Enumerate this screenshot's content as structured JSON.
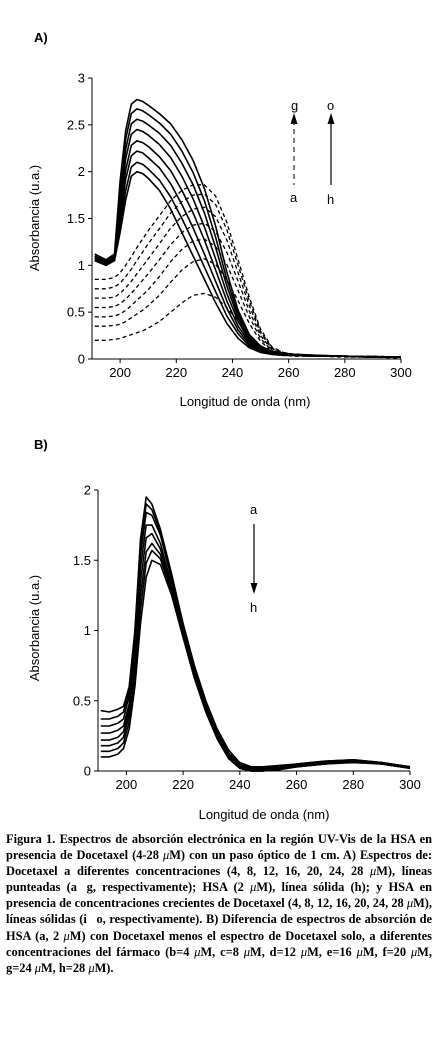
{
  "chart_data": [
    {
      "panel": "A)",
      "type": "line",
      "xlabel": "Longitud de onda (nm)",
      "ylabel": "Absorbancia (u.a.)",
      "xlim": [
        190,
        300
      ],
      "ylim": [
        0,
        3
      ],
      "xticks": [
        200,
        220,
        240,
        260,
        280,
        300
      ],
      "yticks": [
        0,
        0.5,
        1,
        1.5,
        2,
        2.5,
        3
      ],
      "ytick_labels": [
        "0",
        "0.5",
        "1",
        "1.5",
        "2",
        "2.5",
        "3"
      ],
      "annotations": {
        "dashed_top": "g",
        "dashed_bottom": "a",
        "solid_top": "o",
        "solid_bottom": "h"
      },
      "x": [
        191,
        195,
        198,
        200,
        202,
        204,
        206,
        208,
        210,
        214,
        218,
        222,
        226,
        230,
        234,
        238,
        242,
        246,
        250,
        254,
        258,
        262,
        270,
        280,
        290,
        300
      ],
      "series_dashed": [
        {
          "name": "a",
          "values": [
            0.2,
            0.2,
            0.21,
            0.22,
            0.24,
            0.26,
            0.28,
            0.3,
            0.33,
            0.4,
            0.5,
            0.6,
            0.68,
            0.7,
            0.66,
            0.55,
            0.4,
            0.25,
            0.13,
            0.06,
            0.04,
            0.03,
            0.03,
            0.02,
            0.02,
            0.01
          ]
        },
        {
          "name": "b",
          "values": [
            0.35,
            0.35,
            0.36,
            0.37,
            0.4,
            0.44,
            0.48,
            0.52,
            0.57,
            0.68,
            0.82,
            0.95,
            1.04,
            1.07,
            1.01,
            0.85,
            0.62,
            0.38,
            0.19,
            0.08,
            0.05,
            0.04,
            0.03,
            0.03,
            0.02,
            0.02
          ]
        },
        {
          "name": "c",
          "values": [
            0.45,
            0.45,
            0.46,
            0.48,
            0.52,
            0.57,
            0.63,
            0.68,
            0.74,
            0.88,
            1.04,
            1.17,
            1.26,
            1.28,
            1.2,
            1.01,
            0.73,
            0.45,
            0.22,
            0.09,
            0.05,
            0.04,
            0.03,
            0.03,
            0.02,
            0.02
          ]
        },
        {
          "name": "d",
          "values": [
            0.55,
            0.55,
            0.56,
            0.59,
            0.64,
            0.7,
            0.77,
            0.84,
            0.91,
            1.06,
            1.22,
            1.35,
            1.43,
            1.45,
            1.36,
            1.14,
            0.83,
            0.51,
            0.25,
            0.1,
            0.06,
            0.05,
            0.04,
            0.03,
            0.02,
            0.02
          ]
        },
        {
          "name": "e",
          "values": [
            0.65,
            0.65,
            0.66,
            0.7,
            0.76,
            0.83,
            0.91,
            0.99,
            1.07,
            1.23,
            1.4,
            1.52,
            1.6,
            1.62,
            1.52,
            1.27,
            0.92,
            0.57,
            0.28,
            0.11,
            0.06,
            0.05,
            0.04,
            0.03,
            0.03,
            0.02
          ]
        },
        {
          "name": "f",
          "values": [
            0.75,
            0.75,
            0.77,
            0.81,
            0.88,
            0.96,
            1.05,
            1.14,
            1.23,
            1.39,
            1.56,
            1.68,
            1.75,
            1.76,
            1.65,
            1.38,
            1.0,
            0.62,
            0.3,
            0.12,
            0.07,
            0.05,
            0.04,
            0.03,
            0.03,
            0.02
          ]
        },
        {
          "name": "g",
          "values": [
            0.85,
            0.85,
            0.87,
            0.92,
            1.0,
            1.09,
            1.19,
            1.28,
            1.37,
            1.53,
            1.69,
            1.8,
            1.86,
            1.86,
            1.74,
            1.46,
            1.06,
            0.66,
            0.32,
            0.13,
            0.07,
            0.05,
            0.04,
            0.03,
            0.03,
            0.02
          ]
        }
      ],
      "series_solid": [
        {
          "name": "h",
          "values": [
            1.05,
            1.0,
            1.05,
            1.35,
            1.7,
            1.95,
            2.0,
            1.98,
            1.93,
            1.8,
            1.6,
            1.35,
            1.1,
            0.85,
            0.6,
            0.38,
            0.22,
            0.12,
            0.07,
            0.05,
            0.04,
            0.04,
            0.03,
            0.03,
            0.02,
            0.02
          ]
        },
        {
          "name": "i",
          "values": [
            1.05,
            1.0,
            1.05,
            1.42,
            1.8,
            2.05,
            2.1,
            2.08,
            2.03,
            1.91,
            1.73,
            1.5,
            1.25,
            0.98,
            0.72,
            0.46,
            0.27,
            0.14,
            0.08,
            0.05,
            0.04,
            0.04,
            0.03,
            0.03,
            0.02,
            0.02
          ]
        },
        {
          "name": "j",
          "values": [
            1.06,
            1.01,
            1.06,
            1.5,
            1.92,
            2.17,
            2.22,
            2.2,
            2.15,
            2.04,
            1.87,
            1.65,
            1.4,
            1.12,
            0.83,
            0.54,
            0.31,
            0.16,
            0.09,
            0.06,
            0.05,
            0.04,
            0.03,
            0.03,
            0.02,
            0.02
          ]
        },
        {
          "name": "k",
          "values": [
            1.07,
            1.02,
            1.07,
            1.58,
            2.02,
            2.28,
            2.33,
            2.31,
            2.27,
            2.16,
            2.01,
            1.8,
            1.56,
            1.27,
            0.95,
            0.62,
            0.35,
            0.18,
            0.1,
            0.06,
            0.05,
            0.04,
            0.03,
            0.03,
            0.02,
            0.02
          ]
        },
        {
          "name": "l",
          "values": [
            1.08,
            1.03,
            1.08,
            1.66,
            2.14,
            2.4,
            2.45,
            2.43,
            2.39,
            2.29,
            2.15,
            1.95,
            1.71,
            1.41,
            1.07,
            0.7,
            0.4,
            0.2,
            0.11,
            0.07,
            0.05,
            0.04,
            0.03,
            0.03,
            0.02,
            0.02
          ]
        },
        {
          "name": "m",
          "values": [
            1.09,
            1.04,
            1.09,
            1.74,
            2.24,
            2.51,
            2.56,
            2.54,
            2.5,
            2.41,
            2.28,
            2.09,
            1.86,
            1.56,
            1.19,
            0.78,
            0.44,
            0.22,
            0.12,
            0.07,
            0.05,
            0.04,
            0.03,
            0.03,
            0.02,
            0.02
          ]
        },
        {
          "name": "n",
          "values": [
            1.1,
            1.05,
            1.1,
            1.82,
            2.35,
            2.62,
            2.67,
            2.65,
            2.61,
            2.52,
            2.4,
            2.22,
            1.99,
            1.69,
            1.3,
            0.85,
            0.48,
            0.24,
            0.13,
            0.08,
            0.05,
            0.04,
            0.03,
            0.03,
            0.02,
            0.02
          ]
        },
        {
          "name": "o",
          "values": [
            1.12,
            1.06,
            1.12,
            1.9,
            2.44,
            2.72,
            2.77,
            2.75,
            2.71,
            2.62,
            2.51,
            2.34,
            2.12,
            1.82,
            1.42,
            0.93,
            0.52,
            0.26,
            0.14,
            0.08,
            0.06,
            0.05,
            0.04,
            0.03,
            0.02,
            0.02
          ]
        }
      ]
    },
    {
      "panel": "B)",
      "type": "line",
      "xlabel": "Longitud de onda (nm)",
      "ylabel": "Absorbancia (u.a.)",
      "xlim": [
        190,
        300
      ],
      "ylim": [
        0,
        2
      ],
      "xticks": [
        200,
        220,
        240,
        260,
        280,
        300
      ],
      "yticks": [
        0,
        0.5,
        1,
        1.5,
        2
      ],
      "ytick_labels": [
        "0",
        "0.5",
        "1",
        "1.5",
        "2"
      ],
      "annotations": {
        "top": "a",
        "bottom": "h"
      },
      "x": [
        191,
        194,
        197,
        199,
        201,
        203,
        205,
        207,
        209,
        212,
        216,
        220,
        224,
        228,
        232,
        236,
        240,
        244,
        248,
        254,
        260,
        270,
        280,
        290,
        300
      ],
      "series": [
        {
          "name": "a",
          "values": [
            0.43,
            0.42,
            0.44,
            0.46,
            0.6,
            1.0,
            1.65,
            1.95,
            1.9,
            1.72,
            1.4,
            1.05,
            0.75,
            0.5,
            0.3,
            0.15,
            0.06,
            0.03,
            0.03,
            0.04,
            0.05,
            0.07,
            0.08,
            0.06,
            0.03
          ]
        },
        {
          "name": "b",
          "values": [
            0.37,
            0.37,
            0.39,
            0.42,
            0.58,
            0.97,
            1.6,
            1.9,
            1.86,
            1.7,
            1.38,
            1.03,
            0.73,
            0.48,
            0.28,
            0.13,
            0.05,
            0.02,
            0.02,
            0.03,
            0.05,
            0.07,
            0.08,
            0.06,
            0.03
          ]
        },
        {
          "name": "c",
          "values": [
            0.32,
            0.32,
            0.34,
            0.37,
            0.54,
            0.92,
            1.54,
            1.84,
            1.82,
            1.68,
            1.36,
            1.01,
            0.72,
            0.47,
            0.27,
            0.12,
            0.04,
            0.01,
            0.01,
            0.02,
            0.04,
            0.06,
            0.07,
            0.06,
            0.03
          ]
        },
        {
          "name": "d",
          "values": [
            0.27,
            0.27,
            0.29,
            0.32,
            0.48,
            0.86,
            1.45,
            1.75,
            1.75,
            1.62,
            1.32,
            0.99,
            0.7,
            0.46,
            0.26,
            0.11,
            0.03,
            0.01,
            0.01,
            0.02,
            0.04,
            0.06,
            0.07,
            0.05,
            0.03
          ]
        },
        {
          "name": "e",
          "values": [
            0.22,
            0.22,
            0.24,
            0.28,
            0.44,
            0.8,
            1.35,
            1.66,
            1.69,
            1.58,
            1.3,
            0.98,
            0.69,
            0.45,
            0.25,
            0.1,
            0.03,
            0.0,
            0.01,
            0.02,
            0.04,
            0.06,
            0.07,
            0.05,
            0.02
          ]
        },
        {
          "name": "f",
          "values": [
            0.18,
            0.18,
            0.2,
            0.24,
            0.4,
            0.74,
            1.25,
            1.56,
            1.62,
            1.54,
            1.28,
            0.97,
            0.68,
            0.44,
            0.24,
            0.1,
            0.02,
            0.0,
            0.0,
            0.02,
            0.03,
            0.05,
            0.07,
            0.05,
            0.02
          ]
        },
        {
          "name": "g",
          "values": [
            0.14,
            0.14,
            0.16,
            0.2,
            0.35,
            0.68,
            1.15,
            1.48,
            1.57,
            1.51,
            1.27,
            0.96,
            0.67,
            0.43,
            0.24,
            0.09,
            0.02,
            0.0,
            0.0,
            0.01,
            0.03,
            0.05,
            0.07,
            0.05,
            0.02
          ]
        },
        {
          "name": "h",
          "values": [
            0.1,
            0.1,
            0.12,
            0.16,
            0.3,
            0.6,
            1.05,
            1.38,
            1.5,
            1.47,
            1.25,
            0.95,
            0.66,
            0.42,
            0.23,
            0.09,
            0.02,
            0.0,
            0.0,
            0.01,
            0.03,
            0.05,
            0.06,
            0.05,
            0.02
          ]
        }
      ]
    }
  ],
  "caption": {
    "segments": [
      {
        "text": "Figura 1.",
        "bold": true
      },
      {
        "text": " Espectros de absorción electrónica en la región UV-Vis de la HSA en presencia de Docetaxel (4-28 ",
        "bold": true
      },
      {
        "text": "μ",
        "bold": false,
        "italic": true
      },
      {
        "text": "M) con un paso óptico de 1 cm. A)  Espectros de: Docetaxel a diferentes concentraciones (4, 8, 12, 16, 20, 24, 28 ",
        "bold": true
      },
      {
        "text": "μ",
        "bold": false,
        "italic": true
      },
      {
        "text": "M), líneas punteadas (a\u0000g, respectivamente); HSA (2 ",
        "bold": true
      },
      {
        "text": "μ",
        "bold": false,
        "italic": true
      },
      {
        "text": "M), línea sólida (h); y HSA en presencia de concentraciones crecientes de Docetaxel (4, 8, 12, 16, 20, 24, 28 ",
        "bold": true
      },
      {
        "text": "μ",
        "bold": false,
        "italic": true
      },
      {
        "text": "M), líneas sólidas (i\u0000o, respectivamente). B) Diferencia de espectros de absorción de HSA (a, 2 ",
        "bold": true
      },
      {
        "text": "μ",
        "bold": false,
        "italic": true
      },
      {
        "text": "M) con Docetaxel menos el espectro de Docetaxel solo, a diferentes concentraciones del fármaco (b=4 ",
        "bold": true
      },
      {
        "text": "μ",
        "bold": false,
        "italic": true
      },
      {
        "text": "M, c=8 ",
        "bold": true
      },
      {
        "text": "μ",
        "bold": false,
        "italic": true
      },
      {
        "text": "M, d=12 ",
        "bold": true
      },
      {
        "text": "μ",
        "bold": false,
        "italic": true
      },
      {
        "text": "M, e=16 ",
        "bold": true
      },
      {
        "text": "μ",
        "bold": false,
        "italic": true
      },
      {
        "text": "M, f=20 ",
        "bold": true
      },
      {
        "text": "μ",
        "bold": false,
        "italic": true
      },
      {
        "text": "M, g=24 ",
        "bold": true
      },
      {
        "text": "μ",
        "bold": false,
        "italic": true
      },
      {
        "text": "M, h=28 ",
        "bold": true
      },
      {
        "text": "μ",
        "bold": false,
        "italic": true
      },
      {
        "text": "M).",
        "bold": true
      }
    ]
  }
}
